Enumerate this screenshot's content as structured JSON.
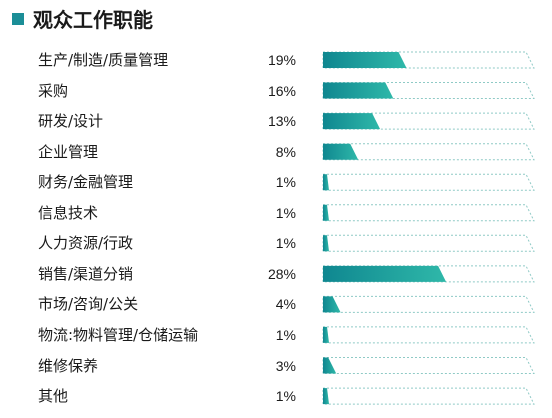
{
  "colors": {
    "accent": "#1b8e97",
    "text": "#1a1a1a",
    "bar_start": "#0f8790",
    "bar_end": "#2fb8a9",
    "track_outline": "#8fcac6"
  },
  "chart_data": {
    "type": "bar",
    "title": "观众工作职能",
    "categories": [
      "生产/制造/质量管理",
      "采购",
      "研发/设计",
      "企业管理",
      "财务/金融管理",
      "信息技术",
      "人力资源/行政",
      "销售/渠道分销",
      "市场/咨询/公关",
      "物流:物料管理/仓储运输",
      "维修保养",
      "其他"
    ],
    "values": [
      19,
      16,
      13,
      8,
      1,
      1,
      1,
      28,
      4,
      1,
      3,
      1
    ],
    "value_labels": [
      "19%",
      "16%",
      "13%",
      "8%",
      "1%",
      "1%",
      "1%",
      "28%",
      "4%",
      "1%",
      "3%",
      "1%"
    ],
    "xlim": [
      0,
      48
    ],
    "grid": false
  }
}
